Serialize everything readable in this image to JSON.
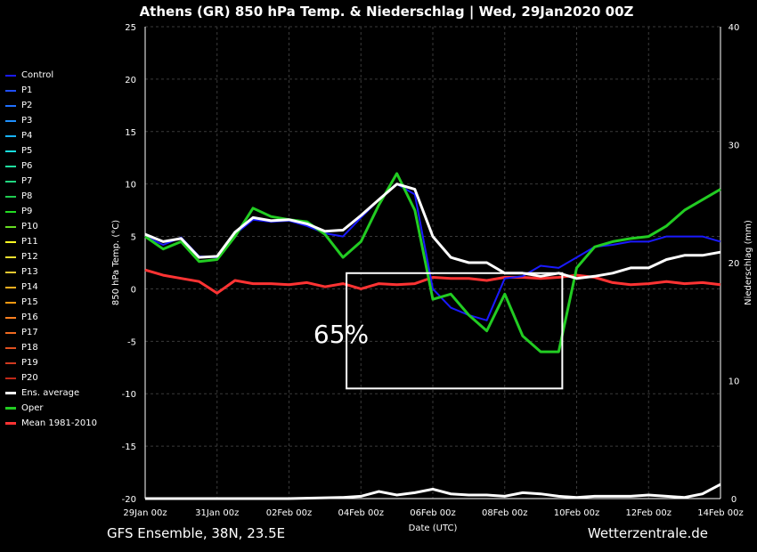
{
  "header": {
    "title": "Athens  (GR)  850 hPa Temp. & Niederschlag | Wed, 29Jan2020 00Z"
  },
  "footer": {
    "left": "GFS Ensemble, 38N, 23.5E",
    "right": "Wetterzentrale.de"
  },
  "annotation": {
    "text": "65%"
  },
  "colors": {
    "background": "#000000",
    "ens_average": "#ffffff",
    "oper": "#22cc22",
    "mean": "#ff3333",
    "control": "#1a1aff",
    "box": "#ffffff"
  },
  "legend": [
    {
      "label": "Control",
      "color": "#1a1aff"
    },
    {
      "label": "P1",
      "color": "#1f4fff"
    },
    {
      "label": "P2",
      "color": "#2070ff"
    },
    {
      "label": "P3",
      "color": "#1e90ff"
    },
    {
      "label": "P4",
      "color": "#18b4ff"
    },
    {
      "label": "P5",
      "color": "#18e0e0"
    },
    {
      "label": "P6",
      "color": "#20e0a0"
    },
    {
      "label": "P7",
      "color": "#20d880"
    },
    {
      "label": "P8",
      "color": "#20cc50"
    },
    {
      "label": "P9",
      "color": "#22dd22"
    },
    {
      "label": "P10",
      "color": "#66dd22"
    },
    {
      "label": "P11",
      "color": "#ffff22"
    },
    {
      "label": "P12",
      "color": "#f0e030"
    },
    {
      "label": "P13",
      "color": "#e8c830"
    },
    {
      "label": "P14",
      "color": "#ffb020"
    },
    {
      "label": "P15",
      "color": "#ff9a10"
    },
    {
      "label": "P16",
      "color": "#ff8020"
    },
    {
      "label": "P17",
      "color": "#f06a20"
    },
    {
      "label": "P18",
      "color": "#e05020"
    },
    {
      "label": "P19",
      "color": "#d03a20"
    },
    {
      "label": "P20",
      "color": "#c02818"
    },
    {
      "label": "Ens. average",
      "color": "#ffffff"
    },
    {
      "label": "Oper",
      "color": "#22cc22"
    },
    {
      "label": "Mean 1981-2010",
      "color": "#ff3333"
    }
  ],
  "chart_data": {
    "type": "line",
    "title": "Athens  (GR)  850 hPa Temp. & Niederschlag | Wed, 29Jan2020 00Z",
    "xlabel": "Date (UTC)",
    "ylabel": "850 hPa Temp. (°C)",
    "y2label": "Niederschlag (mm)",
    "x_ticks": [
      "29Jan 00z",
      "31Jan 00z",
      "02Feb 00z",
      "04Feb 00z",
      "06Feb 00z",
      "08Feb 00z",
      "10Feb 00z",
      "12Feb 00z",
      "14Feb 00z"
    ],
    "x_range_days": [
      0,
      16
    ],
    "ylim": [
      -20,
      25
    ],
    "y_ticks": [
      -20,
      -15,
      -10,
      -5,
      0,
      5,
      10,
      15,
      20,
      25
    ],
    "y2lim": [
      0,
      40
    ],
    "y2_ticks": [
      0,
      10,
      20,
      30,
      40
    ],
    "grid": true,
    "box": {
      "x_days": [
        5.6,
        11.6
      ],
      "y": [
        -9.5,
        1.5
      ]
    },
    "temperature_series": [
      {
        "name": "Ens. average",
        "days": [
          0,
          0.5,
          1,
          1.5,
          2,
          2.5,
          3,
          3.5,
          4,
          4.5,
          5,
          5.5,
          6,
          6.5,
          7,
          7.5,
          8,
          8.5,
          9,
          9.5,
          10,
          10.5,
          11,
          11.5,
          12,
          12.5,
          13,
          13.5,
          14,
          14.5,
          15,
          15.5,
          16
        ],
        "values": [
          5.2,
          4.5,
          4.8,
          3.0,
          3.1,
          5.4,
          6.8,
          6.5,
          6.6,
          6.2,
          5.5,
          5.6,
          7.0,
          8.5,
          10.0,
          9.5,
          5.0,
          3.0,
          2.5,
          2.5,
          1.5,
          1.5,
          1.2,
          1.5,
          1.0,
          1.2,
          1.5,
          2.0,
          2.0,
          2.8,
          3.2,
          3.2,
          3.5
        ]
      },
      {
        "name": "Oper",
        "days": [
          0,
          0.5,
          1,
          1.5,
          2,
          2.5,
          3,
          3.5,
          4,
          4.5,
          5,
          5.5,
          6,
          6.5,
          7,
          7.5,
          8,
          8.5,
          9,
          9.5,
          10,
          10.5,
          11,
          11.5,
          12,
          12.5,
          13,
          13.5,
          14,
          14.5,
          15,
          15.5,
          16
        ],
        "values": [
          5.0,
          3.8,
          4.5,
          2.6,
          2.8,
          5.0,
          7.7,
          6.9,
          6.6,
          6.4,
          5.2,
          3.0,
          4.5,
          8.0,
          11.0,
          7.5,
          -1.0,
          -0.5,
          -2.5,
          -4.0,
          -0.5,
          -4.5,
          -6.0,
          -6.0,
          2.0,
          4.0,
          4.5,
          4.8,
          5.0,
          6.0,
          7.5,
          8.5,
          9.5
        ]
      },
      {
        "name": "Control",
        "days": [
          0,
          0.5,
          1,
          1.5,
          2,
          2.5,
          3,
          3.5,
          4,
          4.5,
          5,
          5.5,
          6,
          6.5,
          7,
          7.5,
          8,
          8.5,
          9,
          9.5,
          10,
          10.5,
          11,
          11.5,
          12,
          12.5,
          13,
          13.5,
          14,
          14.5,
          15,
          15.5,
          16
        ],
        "values": [
          5.0,
          4.2,
          4.9,
          3.1,
          3.0,
          5.2,
          6.6,
          6.4,
          6.5,
          6.0,
          5.3,
          5.0,
          6.8,
          8.5,
          10.0,
          9.0,
          0.0,
          -1.8,
          -2.5,
          -3.0,
          1.0,
          1.2,
          2.2,
          2.0,
          3.0,
          4.0,
          4.2,
          4.5,
          4.5,
          5.0,
          5.0,
          5.0,
          4.5
        ]
      },
      {
        "name": "Mean 1981-2010",
        "days": [
          0,
          0.5,
          1,
          1.5,
          2,
          2.5,
          3,
          3.5,
          4,
          4.5,
          5,
          5.5,
          6,
          6.5,
          7,
          7.5,
          8,
          8.5,
          9,
          9.5,
          10,
          10.5,
          11,
          11.5,
          12,
          12.5,
          13,
          13.5,
          14,
          14.5,
          15,
          15.5,
          16
        ],
        "values": [
          1.8,
          1.3,
          1.0,
          0.7,
          -0.4,
          0.8,
          0.5,
          0.5,
          0.4,
          0.6,
          0.2,
          0.5,
          0.0,
          0.5,
          0.4,
          0.5,
          1.1,
          1.0,
          1.0,
          0.8,
          1.1,
          1.1,
          1.0,
          1.1,
          1.3,
          1.1,
          0.6,
          0.4,
          0.5,
          0.7,
          0.5,
          0.6,
          0.4
        ]
      }
    ],
    "precipitation_series": [
      {
        "name": "Ens. average",
        "days": [
          0,
          2,
          4,
          5.5,
          6,
          6.5,
          7,
          7.5,
          8,
          8.5,
          9,
          9.5,
          10,
          10.5,
          11,
          11.5,
          12,
          12.5,
          13,
          13.5,
          14,
          14.5,
          15,
          15.5,
          16
        ],
        "mm": [
          0,
          0,
          0,
          0.1,
          0.2,
          0.6,
          0.3,
          0.5,
          0.8,
          0.4,
          0.3,
          0.3,
          0.2,
          0.5,
          0.4,
          0.2,
          0.1,
          0.2,
          0.2,
          0.2,
          0.3,
          0.2,
          0.1,
          0.4,
          1.2
        ]
      }
    ]
  }
}
